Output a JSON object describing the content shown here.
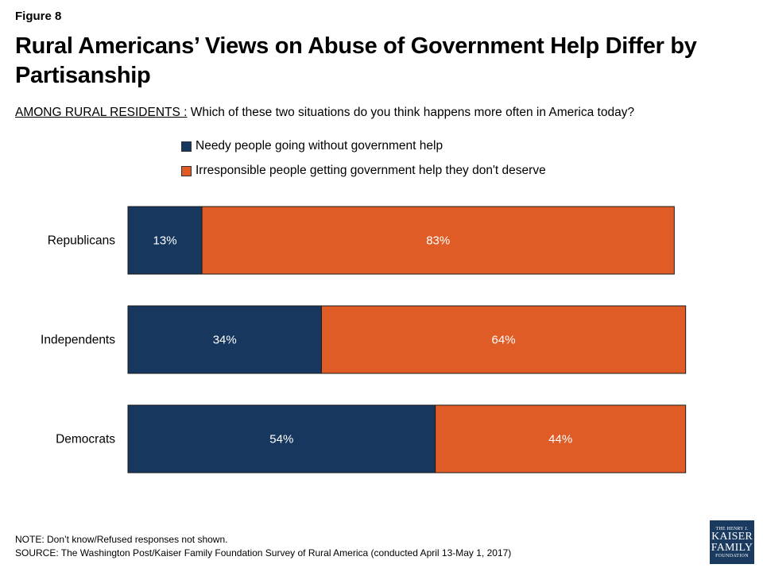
{
  "figure_label": "Figure 8",
  "title": "Rural Americans’ Views on Abuse of Government Help Differ by Partisanship",
  "subtitle": {
    "lead": "AMONG RURAL RESIDENTS :",
    "question": " Which of these two situations do you think happens more often in America today?"
  },
  "legend": {
    "items": [
      {
        "label": "Needy people going without government help",
        "color": "#17375e"
      },
      {
        "label": "Irresponsible people getting government help they don't deserve",
        "color": "#e05c27"
      }
    ]
  },
  "chart_data": {
    "type": "bar",
    "orientation": "horizontal",
    "stacked": true,
    "categories": [
      "Republicans",
      "Independents",
      "Democrats"
    ],
    "series": [
      {
        "name": "Needy people going without government help",
        "values": [
          13,
          34,
          54
        ],
        "labels": [
          "13%",
          "34%",
          "54%"
        ],
        "color": "#17375e"
      },
      {
        "name": "Irresponsible people getting government help they don't deserve",
        "values": [
          83,
          64,
          44
        ],
        "labels": [
          "83%",
          "64%",
          "44%"
        ],
        "color": "#e05c27"
      }
    ],
    "xlim": [
      0,
      100
    ],
    "grid": false,
    "legend_position": "top"
  },
  "footer": {
    "note": "NOTE: Don’t know/Refused responses not shown.",
    "source": "SOURCE: The Washington Post/Kaiser Family Foundation Survey of Rural America (conducted April 13-May 1, 2017)"
  },
  "logo": {
    "line1": "THE HENRY J.",
    "line2": "KAISER",
    "line3": "FAMILY",
    "line4": "FOUNDATION"
  }
}
